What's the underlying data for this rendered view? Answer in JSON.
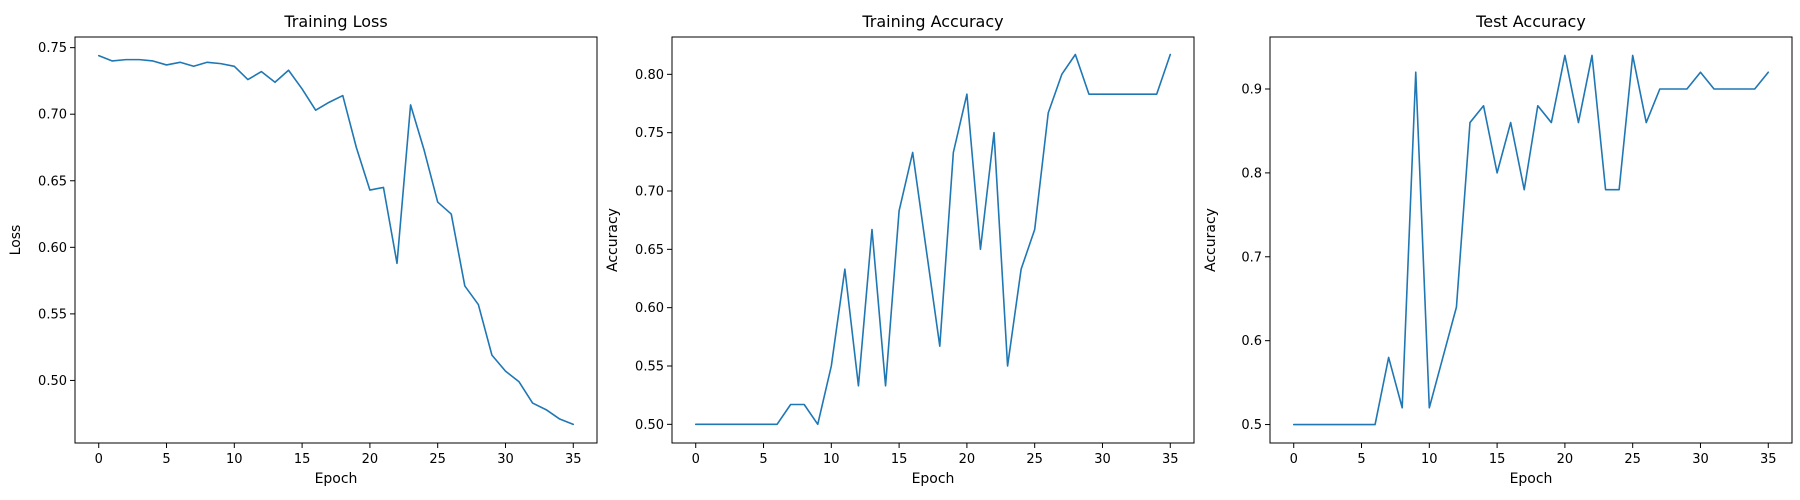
{
  "colors": {
    "series": "#1f77b4"
  },
  "chart_data": [
    {
      "type": "line",
      "title": "Training Loss",
      "xlabel": "Epoch",
      "ylabel": "Loss",
      "xlim": [
        -1.75,
        36.75
      ],
      "ylim": [
        0.453,
        0.758
      ],
      "xticks": [
        0,
        5,
        10,
        15,
        20,
        25,
        30,
        35
      ],
      "xtick_labels": [
        "0",
        "5",
        "10",
        "15",
        "20",
        "25",
        "30",
        "35"
      ],
      "yticks": [
        0.5,
        0.55,
        0.6,
        0.65,
        0.7,
        0.75
      ],
      "ytick_labels": [
        "0.50",
        "0.55",
        "0.60",
        "0.65",
        "0.70",
        "0.75"
      ],
      "grid": false,
      "x": [
        0,
        1,
        2,
        3,
        4,
        5,
        6,
        7,
        8,
        9,
        10,
        11,
        12,
        13,
        14,
        15,
        16,
        17,
        18,
        19,
        20,
        21,
        22,
        23,
        24,
        25,
        26,
        27,
        28,
        29,
        30,
        31,
        32,
        33,
        34,
        35
      ],
      "series": [
        {
          "values": [
            0.744,
            0.74,
            0.741,
            0.741,
            0.74,
            0.737,
            0.739,
            0.736,
            0.739,
            0.738,
            0.736,
            0.726,
            0.732,
            0.724,
            0.733,
            0.719,
            0.703,
            0.709,
            0.714,
            0.675,
            0.643,
            0.645,
            0.588,
            0.707,
            0.673,
            0.634,
            0.625,
            0.571,
            0.557,
            0.519,
            0.507,
            0.499,
            0.483,
            0.478,
            0.471,
            0.467
          ]
        }
      ]
    },
    {
      "type": "line",
      "title": "Training Accuracy",
      "xlabel": "Epoch",
      "ylabel": "Accuracy",
      "xlim": [
        -1.75,
        36.75
      ],
      "ylim": [
        0.484,
        0.832
      ],
      "xticks": [
        0,
        5,
        10,
        15,
        20,
        25,
        30,
        35
      ],
      "xtick_labels": [
        "0",
        "5",
        "10",
        "15",
        "20",
        "25",
        "30",
        "35"
      ],
      "yticks": [
        0.5,
        0.55,
        0.6,
        0.65,
        0.7,
        0.75,
        0.8
      ],
      "ytick_labels": [
        "0.50",
        "0.55",
        "0.60",
        "0.65",
        "0.70",
        "0.75",
        "0.80"
      ],
      "grid": false,
      "x": [
        0,
        1,
        2,
        3,
        4,
        5,
        6,
        7,
        8,
        9,
        10,
        11,
        12,
        13,
        14,
        15,
        16,
        17,
        18,
        19,
        20,
        21,
        22,
        23,
        24,
        25,
        26,
        27,
        28,
        29,
        30,
        31,
        32,
        33,
        34,
        35
      ],
      "series": [
        {
          "values": [
            0.5,
            0.5,
            0.5,
            0.5,
            0.5,
            0.5,
            0.5,
            0.517,
            0.517,
            0.5,
            0.55,
            0.633,
            0.533,
            0.667,
            0.533,
            0.683,
            0.733,
            0.65,
            0.567,
            0.733,
            0.783,
            0.65,
            0.75,
            0.55,
            0.633,
            0.667,
            0.767,
            0.8,
            0.817,
            0.783,
            0.783,
            0.783,
            0.783,
            0.783,
            0.783,
            0.817
          ]
        }
      ]
    },
    {
      "type": "line",
      "title": "Test Accuracy",
      "xlabel": "Epoch",
      "ylabel": "Accuracy",
      "xlim": [
        -1.75,
        36.75
      ],
      "ylim": [
        0.478,
        0.962
      ],
      "xticks": [
        0,
        5,
        10,
        15,
        20,
        25,
        30,
        35
      ],
      "xtick_labels": [
        "0",
        "5",
        "10",
        "15",
        "20",
        "25",
        "30",
        "35"
      ],
      "yticks": [
        0.5,
        0.6,
        0.7,
        0.8,
        0.9
      ],
      "ytick_labels": [
        "0.5",
        "0.6",
        "0.7",
        "0.8",
        "0.9"
      ],
      "grid": false,
      "x": [
        0,
        1,
        2,
        3,
        4,
        5,
        6,
        7,
        8,
        9,
        10,
        11,
        12,
        13,
        14,
        15,
        16,
        17,
        18,
        19,
        20,
        21,
        22,
        23,
        24,
        25,
        26,
        27,
        28,
        29,
        30,
        31,
        32,
        33,
        34,
        35
      ],
      "series": [
        {
          "values": [
            0.5,
            0.5,
            0.5,
            0.5,
            0.5,
            0.5,
            0.5,
            0.58,
            0.52,
            0.92,
            0.52,
            0.58,
            0.64,
            0.86,
            0.88,
            0.8,
            0.86,
            0.78,
            0.88,
            0.86,
            0.94,
            0.86,
            0.94,
            0.78,
            0.78,
            0.94,
            0.86,
            0.9,
            0.9,
            0.9,
            0.92,
            0.9,
            0.9,
            0.9,
            0.9,
            0.92
          ]
        }
      ]
    }
  ]
}
